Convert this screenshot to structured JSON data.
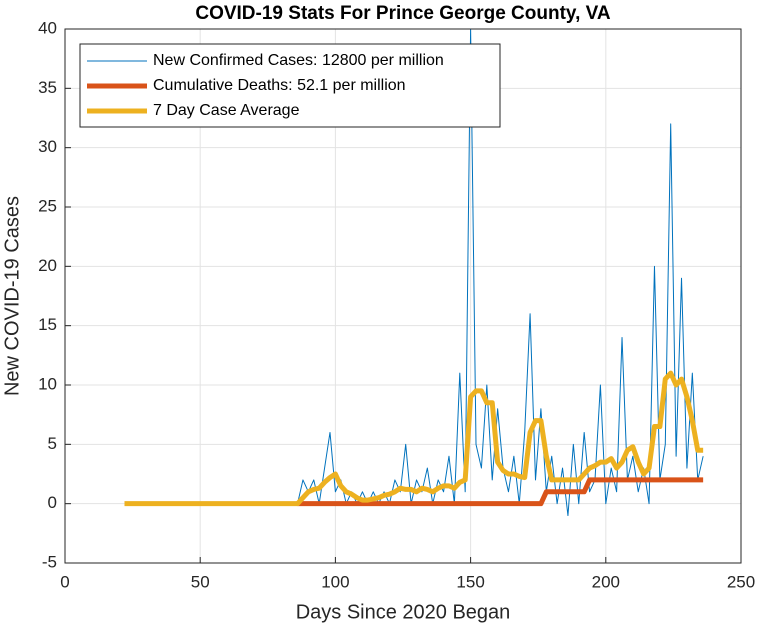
{
  "chart_data": {
    "type": "line",
    "title": "COVID-19 Stats For Prince George County, VA",
    "xlabel": "Days Since 2020 Began",
    "ylabel": "New COVID-19 Cases",
    "xlim": [
      0,
      250
    ],
    "xticks": [
      0,
      50,
      100,
      150,
      200,
      250
    ],
    "ylim": [
      -5,
      40
    ],
    "yticks": [
      -5,
      0,
      5,
      10,
      15,
      20,
      25,
      30,
      35,
      40
    ],
    "grid": true,
    "legend": "northwest",
    "x": [
      22,
      86,
      88,
      90,
      92,
      94,
      96,
      98,
      100,
      102,
      104,
      106,
      108,
      110,
      112,
      114,
      116,
      118,
      120,
      122,
      124,
      126,
      128,
      130,
      132,
      134,
      136,
      138,
      140,
      142,
      144,
      146,
      148,
      150,
      152,
      154,
      156,
      158,
      160,
      162,
      164,
      166,
      168,
      170,
      172,
      174,
      176,
      178,
      180,
      182,
      184,
      186,
      188,
      190,
      192,
      194,
      196,
      198,
      200,
      202,
      204,
      206,
      208,
      210,
      212,
      214,
      216,
      218,
      220,
      222,
      224,
      226,
      228,
      230,
      232,
      234,
      236
    ],
    "series": [
      {
        "name": "New Confirmed Cases: 12800 per million",
        "color": "#0072BD",
        "width": 1,
        "values": [
          null,
          0,
          2,
          1,
          2,
          0,
          3,
          6,
          1,
          2,
          0,
          1,
          0,
          1,
          0,
          1,
          0,
          1,
          0,
          2,
          1,
          5,
          0,
          2,
          1,
          3,
          0,
          2,
          1,
          4,
          0,
          11,
          1,
          40,
          5,
          3,
          10,
          2,
          8,
          3,
          1,
          4,
          0,
          6,
          16,
          2,
          8,
          1,
          4,
          0,
          3,
          -1,
          5,
          0,
          6,
          1,
          2,
          10,
          0,
          3,
          1,
          14,
          2,
          4,
          1,
          3,
          0,
          20,
          2,
          5,
          32,
          4,
          19,
          3,
          11,
          2,
          4
        ]
      },
      {
        "name": "Cumulative Deaths: 52.1 per million",
        "color": "#D95319",
        "width": 5,
        "values": [
          null,
          0,
          0,
          0,
          0,
          0,
          0,
          0,
          0,
          0,
          0,
          0,
          0,
          0,
          0,
          0,
          0,
          0,
          0,
          0,
          0,
          0,
          0,
          0,
          0,
          0,
          0,
          0,
          0,
          0,
          0,
          0,
          0,
          0,
          0,
          0,
          0,
          0,
          0,
          0,
          0,
          0,
          0,
          0,
          0,
          0,
          0,
          1,
          1,
          1,
          1,
          1,
          1,
          1,
          1,
          2,
          2,
          2,
          2,
          2,
          2,
          2,
          2,
          2,
          2,
          2,
          2,
          2,
          2,
          2,
          2,
          2,
          2,
          2,
          2,
          2,
          2
        ]
      },
      {
        "name": "7 Day Case Average",
        "color": "#EDB120",
        "width": 5,
        "values": [
          0,
          0,
          0.5,
          1,
          1.2,
          1.3,
          1.8,
          2.2,
          2.5,
          1.5,
          1,
          0.8,
          0.5,
          0.3,
          0.3,
          0.4,
          0.5,
          0.7,
          0.8,
          1,
          1.3,
          1.2,
          1.2,
          1,
          1.3,
          1.2,
          1,
          1.3,
          1.5,
          1.5,
          1.3,
          1.8,
          2,
          9,
          9.5,
          9.5,
          8.5,
          8.5,
          3.5,
          2.8,
          2.5,
          2.5,
          2.3,
          2.2,
          6,
          7,
          7,
          4,
          2,
          2,
          2,
          2,
          2,
          2,
          2.5,
          3,
          3.2,
          3.5,
          3.5,
          3.8,
          3,
          3.5,
          4.5,
          4.8,
          3.5,
          2.5,
          3,
          6.5,
          6.5,
          10.5,
          11,
          10,
          10.5,
          9,
          7,
          4.5,
          4.5
        ]
      }
    ]
  }
}
